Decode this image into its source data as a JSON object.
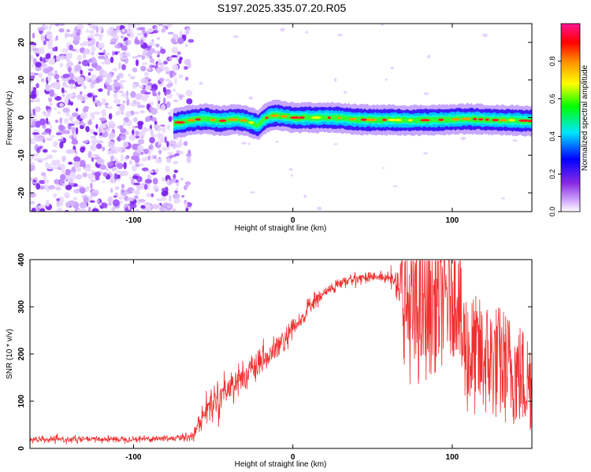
{
  "page": {
    "title": "S197.2025.335.07.20.R05"
  },
  "chart_data": [
    {
      "type": "heatmap",
      "title": "",
      "xlabel": "Height of straight line (km)",
      "ylabel": "Frequency (Hz)",
      "xlim": [
        -165,
        150
      ],
      "ylim": [
        -25,
        25
      ],
      "x_ticks": [
        -100,
        0,
        100
      ],
      "y_ticks": [
        -20,
        -10,
        0,
        10,
        20
      ],
      "colorbar": {
        "label": "Normalized spectral amplitude",
        "range": [
          0,
          1
        ],
        "ticks": [
          0.0,
          0.2,
          0.4,
          0.6,
          0.8
        ],
        "colors": [
          "#ffffff",
          "#d8b4ff",
          "#8a2be2",
          "#0000ff",
          "#00e5ff",
          "#00ff00",
          "#ffff00",
          "#ff8c00",
          "#ff0000",
          "#ff1493"
        ]
      },
      "noise_region": {
        "x_range": [
          -165,
          -67
        ],
        "description_level": 0.35
      },
      "signal_trace": {
        "x": [
          -75,
          -70,
          -65,
          -60,
          -55,
          -50,
          -45,
          -40,
          -35,
          -30,
          -25,
          -22,
          -20,
          -18,
          -15,
          -10,
          -5,
          0,
          10,
          20,
          30,
          40,
          50,
          60,
          70,
          80,
          90,
          100,
          110,
          120,
          130,
          140,
          150
        ],
        "y": [
          -1.6,
          -1.2,
          -0.8,
          -0.5,
          -0.3,
          -0.6,
          -0.9,
          -0.6,
          -0.5,
          -0.8,
          -1.5,
          -2.0,
          -1.2,
          -0.5,
          0.3,
          0.6,
          0.3,
          0.0,
          0.0,
          0.0,
          -0.1,
          -0.5,
          -0.6,
          -0.6,
          -0.7,
          -0.7,
          -0.6,
          -0.5,
          -0.3,
          -0.5,
          -0.7,
          -0.7,
          -0.9
        ],
        "peak_amplitude": 0.95
      }
    },
    {
      "type": "line",
      "title": "",
      "xlabel": "Height of straight line (km)",
      "ylabel": "SNR (10 * v/v)",
      "xlim": [
        -165,
        150
      ],
      "ylim": [
        0,
        400
      ],
      "x_ticks": [
        -100,
        0,
        100
      ],
      "y_ticks": [
        0,
        100,
        200,
        300,
        400
      ],
      "line_color": "#f03030",
      "envelope": {
        "x": [
          -165,
          -100,
          -70,
          -62,
          -55,
          -45,
          -35,
          -25,
          -15,
          -5,
          5,
          10,
          15,
          20,
          25,
          30,
          40,
          50,
          60,
          65,
          70,
          75,
          85,
          95,
          104,
          106,
          110,
          120,
          130,
          140,
          150
        ],
        "mean": [
          18,
          20,
          22,
          30,
          80,
          115,
          145,
          165,
          195,
          230,
          270,
          300,
          315,
          330,
          340,
          350,
          360,
          365,
          360,
          355,
          320,
          280,
          300,
          320,
          330,
          230,
          200,
          190,
          180,
          160,
          140
        ],
        "spread": [
          10,
          10,
          12,
          20,
          45,
          55,
          50,
          45,
          40,
          40,
          35,
          30,
          25,
          20,
          20,
          20,
          18,
          15,
          20,
          40,
          160,
          180,
          170,
          160,
          140,
          150,
          150,
          140,
          140,
          130,
          120
        ]
      }
    }
  ]
}
